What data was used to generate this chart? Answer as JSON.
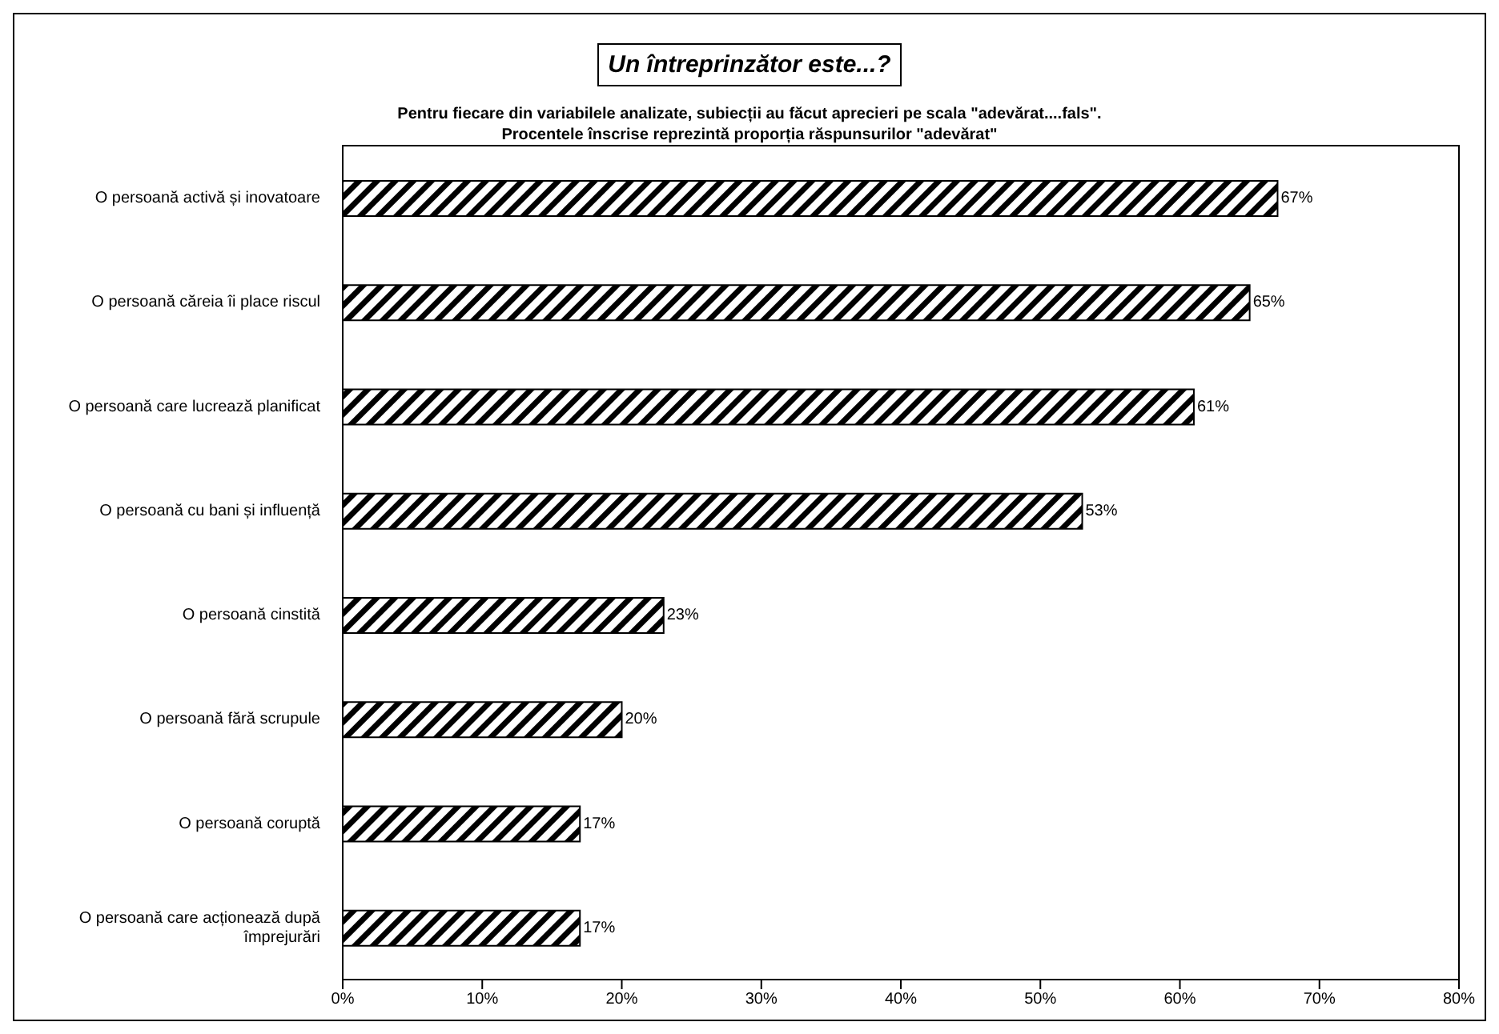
{
  "chart_data": {
    "type": "bar",
    "orientation": "horizontal",
    "title": "Un întreprinzător este...?",
    "subtitle": "Pentru fiecare din variabilele analizate, subiecții au făcut aprecieri pe scala \"adevărat....fals\".\nProcentele înscrise reprezintă proporția răspunsurilor \"adevărat\"",
    "categories": [
      "O persoană activă și inovatoare",
      "O persoană căreia îi place riscul",
      "O persoană care lucrează planificat",
      "O persoană cu bani și influență",
      "O persoană cinstită",
      "O persoană fără scrupule",
      "O persoană coruptă",
      "O persoană care acționează după împrejurări"
    ],
    "values": [
      67,
      65,
      61,
      53,
      23,
      20,
      17,
      17
    ],
    "value_labels": [
      "67%",
      "65%",
      "61%",
      "53%",
      "23%",
      "20%",
      "17%",
      "17%"
    ],
    "color": "#000000",
    "xlim": [
      0,
      80
    ],
    "xticks": [
      {
        "value": 0,
        "label": "0%"
      },
      {
        "value": 10,
        "label": "10%"
      },
      {
        "value": 20,
        "label": "20%"
      },
      {
        "value": 30,
        "label": "30%"
      },
      {
        "value": 40,
        "label": "40%"
      },
      {
        "value": 50,
        "label": "50%"
      },
      {
        "value": 60,
        "label": "60%"
      },
      {
        "value": 70,
        "label": "70%"
      },
      {
        "value": 80,
        "label": "80%"
      }
    ],
    "grid": false,
    "legend": false
  }
}
